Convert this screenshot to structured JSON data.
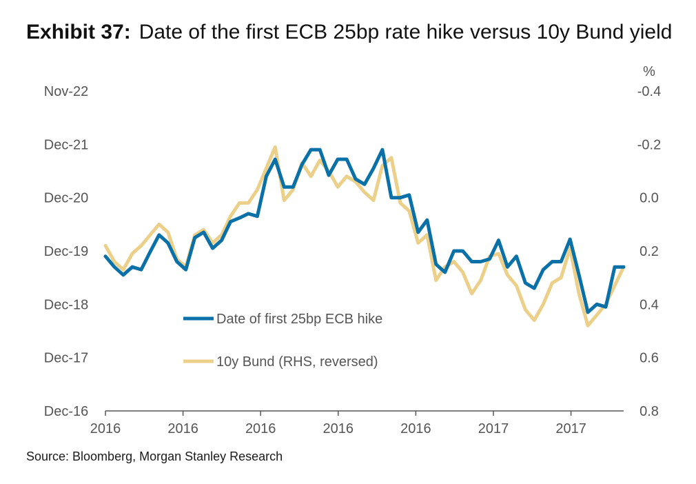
{
  "title": {
    "lead": "Exhibit 37:",
    "text": "Date of the first ECB 25bp rate hike versus 10y Bund yield"
  },
  "source": "Source: Bloomberg, Morgan Stanley Research",
  "colors": {
    "hike": "#0a70a8",
    "bund": "#ecd08a",
    "axis": "#555555",
    "tick_text": "#555555"
  },
  "chart_data": {
    "type": "line",
    "left_axis": {
      "labels": [
        "Dec-16",
        "Dec-17",
        "Dec-18",
        "Dec-19",
        "Dec-20",
        "Dec-21",
        "Nov-22"
      ],
      "range_years": [
        0,
        6
      ]
    },
    "right_axis": {
      "unit": "%",
      "labels": [
        "-0.4",
        "-0.2",
        "0.0",
        "0.2",
        "0.4",
        "0.6",
        "0.8"
      ],
      "range": [
        -0.4,
        0.8
      ],
      "reversed": true
    },
    "x_tick_labels": [
      "2016",
      "2016",
      "2016",
      "2016",
      "2016",
      "2017",
      "2017"
    ],
    "legend": {
      "position": "center-left"
    },
    "series": [
      {
        "name": "Date of first 25bp ECB hike",
        "axis": "left",
        "values": [
          2.9,
          2.7,
          2.55,
          2.7,
          2.65,
          2.98,
          3.3,
          3.15,
          2.8,
          2.65,
          3.25,
          3.35,
          3.05,
          3.2,
          3.55,
          3.62,
          3.7,
          3.65,
          4.4,
          4.72,
          4.2,
          4.2,
          4.62,
          4.9,
          4.9,
          4.42,
          4.72,
          4.72,
          4.35,
          4.25,
          4.55,
          4.9,
          4.0,
          4.0,
          4.05,
          3.35,
          3.58,
          2.75,
          2.6,
          3.0,
          3.0,
          2.8,
          2.8,
          2.85,
          3.2,
          2.7,
          2.9,
          2.4,
          2.3,
          2.65,
          2.8,
          2.8,
          3.22,
          2.55,
          1.85,
          2.0,
          1.95,
          2.7,
          2.7
        ]
      },
      {
        "name": "10y Bund (RHS, reversed)",
        "axis": "right",
        "values": [
          0.18,
          0.24,
          0.27,
          0.21,
          0.18,
          0.14,
          0.1,
          0.13,
          0.23,
          0.26,
          0.14,
          0.12,
          0.17,
          0.14,
          0.07,
          0.02,
          0.02,
          -0.03,
          -0.11,
          -0.19,
          0.01,
          -0.03,
          -0.13,
          -0.08,
          -0.14,
          -0.1,
          -0.04,
          -0.08,
          -0.06,
          -0.02,
          0.01,
          -0.12,
          -0.15,
          0.02,
          0.05,
          0.17,
          0.14,
          0.31,
          0.26,
          0.24,
          0.28,
          0.36,
          0.31,
          0.22,
          0.21,
          0.29,
          0.33,
          0.42,
          0.46,
          0.4,
          0.32,
          0.3,
          0.19,
          0.36,
          0.48,
          0.44,
          0.4,
          0.33,
          0.26
        ]
      }
    ]
  }
}
